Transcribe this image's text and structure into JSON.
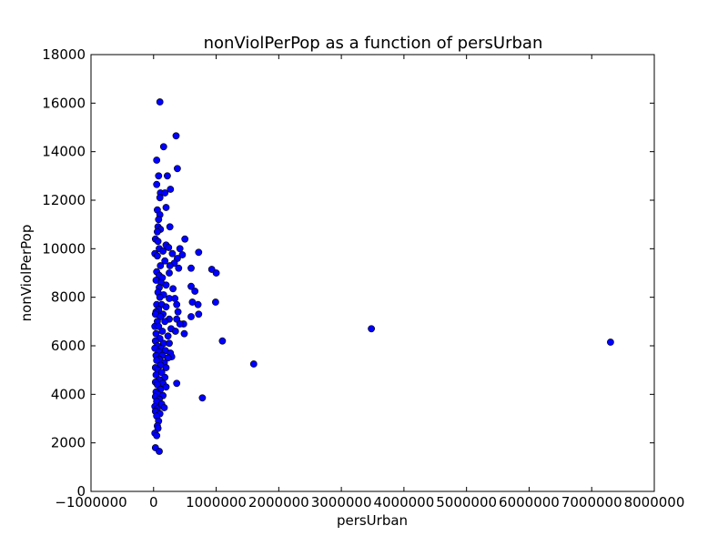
{
  "chart_data": {
    "type": "scatter",
    "title": "nonViolPerPop as a function of persUrban",
    "xlabel": "persUrban",
    "ylabel": "nonViolPerPop",
    "xlim": [
      -1000000,
      8000000
    ],
    "ylim": [
      0,
      18000
    ],
    "xticks": [
      -1000000,
      0,
      1000000,
      2000000,
      3000000,
      4000000,
      5000000,
      6000000,
      7000000,
      8000000
    ],
    "xtick_labels": [
      "−1000000",
      "0",
      "1000000",
      "2000000",
      "3000000",
      "4000000",
      "5000000",
      "6000000",
      "7000000",
      "8000000"
    ],
    "yticks": [
      0,
      2000,
      4000,
      6000,
      8000,
      10000,
      12000,
      14000,
      16000,
      18000
    ],
    "ytick_labels": [
      "0",
      "2000",
      "4000",
      "6000",
      "8000",
      "10000",
      "12000",
      "14000",
      "16000",
      "18000"
    ],
    "grid": false,
    "legend": "none",
    "marker_color": "#0000ff",
    "marker_edge": "#000000",
    "points": [
      [
        100000,
        16050
      ],
      [
        360000,
        14650
      ],
      [
        160000,
        14200
      ],
      [
        50000,
        13650
      ],
      [
        380000,
        13300
      ],
      [
        220000,
        13000
      ],
      [
        80000,
        13000
      ],
      [
        270000,
        12450
      ],
      [
        50000,
        12650
      ],
      [
        110000,
        12300
      ],
      [
        180000,
        12300
      ],
      [
        100000,
        12100
      ],
      [
        200000,
        11700
      ],
      [
        60000,
        11600
      ],
      [
        100000,
        11400
      ],
      [
        80000,
        11200
      ],
      [
        70000,
        10900
      ],
      [
        110000,
        10800
      ],
      [
        260000,
        10900
      ],
      [
        60000,
        10700
      ],
      [
        500000,
        10400
      ],
      [
        30000,
        10400
      ],
      [
        70000,
        10300
      ],
      [
        200000,
        10150
      ],
      [
        240000,
        10050
      ],
      [
        420000,
        10000
      ],
      [
        90000,
        10000
      ],
      [
        150000,
        9900
      ],
      [
        720000,
        9850
      ],
      [
        20000,
        9800
      ],
      [
        300000,
        9800
      ],
      [
        460000,
        9750
      ],
      [
        60000,
        9700
      ],
      [
        380000,
        9600
      ],
      [
        180000,
        9500
      ],
      [
        330000,
        9400
      ],
      [
        110000,
        9300
      ],
      [
        260000,
        9300
      ],
      [
        400000,
        9200
      ],
      [
        600000,
        9200
      ],
      [
        930000,
        9150
      ],
      [
        1000000,
        9000
      ],
      [
        50000,
        9050
      ],
      [
        250000,
        9000
      ],
      [
        90000,
        8900
      ],
      [
        140000,
        8800
      ],
      [
        40000,
        8700
      ],
      [
        120000,
        8600
      ],
      [
        200000,
        8500
      ],
      [
        600000,
        8450
      ],
      [
        90000,
        8400
      ],
      [
        310000,
        8350
      ],
      [
        660000,
        8250
      ],
      [
        70000,
        8200
      ],
      [
        160000,
        8100
      ],
      [
        100000,
        8000
      ],
      [
        250000,
        7950
      ],
      [
        340000,
        7950
      ],
      [
        620000,
        7800
      ],
      [
        990000,
        7800
      ],
      [
        50000,
        7700
      ],
      [
        130000,
        7700
      ],
      [
        370000,
        7700
      ],
      [
        710000,
        7700
      ],
      [
        200000,
        7600
      ],
      [
        80000,
        7500
      ],
      [
        40000,
        7400
      ],
      [
        390000,
        7400
      ],
      [
        150000,
        7300
      ],
      [
        30000,
        7300
      ],
      [
        720000,
        7300
      ],
      [
        110000,
        7200
      ],
      [
        600000,
        7200
      ],
      [
        250000,
        7100
      ],
      [
        370000,
        7100
      ],
      [
        60000,
        7000
      ],
      [
        180000,
        7000
      ],
      [
        480000,
        6900
      ],
      [
        420000,
        6900
      ],
      [
        20000,
        6800
      ],
      [
        80000,
        6800
      ],
      [
        280000,
        6700
      ],
      [
        3480000,
        6700
      ],
      [
        350000,
        6600
      ],
      [
        140000,
        6600
      ],
      [
        490000,
        6500
      ],
      [
        40000,
        6500
      ],
      [
        230000,
        6400
      ],
      [
        100000,
        6300
      ],
      [
        30000,
        6200
      ],
      [
        1100000,
        6200
      ],
      [
        7300000,
        6150
      ],
      [
        160000,
        6100
      ],
      [
        250000,
        6100
      ],
      [
        60000,
        6000
      ],
      [
        20000,
        5900
      ],
      [
        120000,
        5900
      ],
      [
        190000,
        5800
      ],
      [
        80000,
        5750
      ],
      [
        270000,
        5700
      ],
      [
        40000,
        5600
      ],
      [
        140000,
        5600
      ],
      [
        290000,
        5550
      ],
      [
        230000,
        5500
      ],
      [
        90000,
        5450
      ],
      [
        50000,
        5400
      ],
      [
        170000,
        5300
      ],
      [
        1600000,
        5250
      ],
      [
        110000,
        5200
      ],
      [
        30000,
        5100
      ],
      [
        200000,
        5100
      ],
      [
        70000,
        5000
      ],
      [
        130000,
        4900
      ],
      [
        40000,
        4800
      ],
      [
        180000,
        4700
      ],
      [
        90000,
        4600
      ],
      [
        30000,
        4500
      ],
      [
        150000,
        4450
      ],
      [
        370000,
        4450
      ],
      [
        60000,
        4400
      ],
      [
        200000,
        4300
      ],
      [
        110000,
        4200
      ],
      [
        40000,
        4100
      ],
      [
        70000,
        4000
      ],
      [
        150000,
        3950
      ],
      [
        30000,
        3900
      ],
      [
        780000,
        3850
      ],
      [
        90000,
        3800
      ],
      [
        50000,
        3700
      ],
      [
        130000,
        3600
      ],
      [
        20000,
        3500
      ],
      [
        170000,
        3450
      ],
      [
        60000,
        3400
      ],
      [
        30000,
        3300
      ],
      [
        100000,
        3200
      ],
      [
        50000,
        3100
      ],
      [
        80000,
        2900
      ],
      [
        60000,
        2700
      ],
      [
        70000,
        2600
      ],
      [
        20000,
        2400
      ],
      [
        50000,
        2300
      ],
      [
        30000,
        1800
      ],
      [
        90000,
        1650
      ]
    ]
  }
}
